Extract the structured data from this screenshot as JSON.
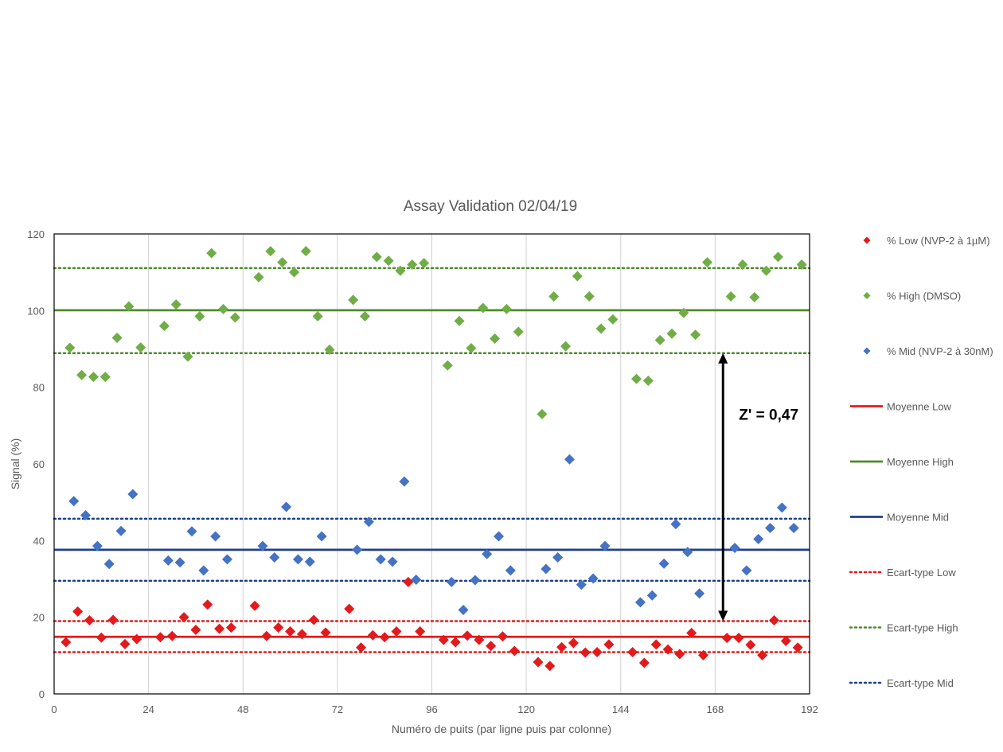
{
  "chart_data": {
    "type": "scatter",
    "title": "Assay Validation 02/04/19",
    "xlabel": "Numéro de puits (par ligne puis par colonne)",
    "ylabel": "Signal (%)",
    "xlim": [
      0,
      192
    ],
    "ylim": [
      0,
      120
    ],
    "xticks": [
      0,
      24,
      48,
      72,
      96,
      120,
      144,
      168,
      192
    ],
    "yticks": [
      0,
      20,
      40,
      60,
      80,
      100,
      120
    ],
    "grid": "vertical",
    "legend_position": "right",
    "series": [
      {
        "name": "% Low (NVP-2 à 1µM)",
        "color": "#e31a1c",
        "marker": "diamond",
        "points": [
          [
            3,
            13.5
          ],
          [
            6,
            21.5
          ],
          [
            9,
            19.2
          ],
          [
            12,
            14.7
          ],
          [
            15,
            19.3
          ],
          [
            18,
            13
          ],
          [
            21,
            14.3
          ],
          [
            27,
            14.8
          ],
          [
            30,
            15.1
          ],
          [
            33,
            20
          ],
          [
            36,
            16.7
          ],
          [
            39,
            23.3
          ],
          [
            42,
            17
          ],
          [
            45,
            17.3
          ],
          [
            51,
            23
          ],
          [
            54,
            15.1
          ],
          [
            57,
            17.3
          ],
          [
            60,
            16.3
          ],
          [
            63,
            15.6
          ],
          [
            66,
            19.3
          ],
          [
            69,
            16
          ],
          [
            75,
            22.2
          ],
          [
            78,
            12.1
          ],
          [
            81,
            15.3
          ],
          [
            84,
            14.8
          ],
          [
            87,
            16.3
          ],
          [
            90,
            29.2
          ],
          [
            93,
            16.3
          ],
          [
            99,
            14.1
          ],
          [
            102,
            13.5
          ],
          [
            105,
            15.2
          ],
          [
            108,
            14.1
          ],
          [
            111,
            12.5
          ],
          [
            114,
            15
          ],
          [
            117,
            11.2
          ],
          [
            123,
            8.3
          ],
          [
            126,
            7.3
          ],
          [
            129,
            12.2
          ],
          [
            132,
            13.3
          ],
          [
            135,
            10.8
          ],
          [
            138,
            10.9
          ],
          [
            141,
            12.9
          ],
          [
            147,
            10.9
          ],
          [
            150,
            8.1
          ],
          [
            153,
            12.9
          ],
          [
            156,
            11.6
          ],
          [
            159,
            10.4
          ],
          [
            162,
            15.9
          ],
          [
            165,
            10.1
          ],
          [
            171,
            14.6
          ],
          [
            174,
            14.6
          ],
          [
            177,
            12.8
          ],
          [
            180,
            10.1
          ],
          [
            183,
            19.2
          ],
          [
            186,
            13.8
          ],
          [
            189,
            12.1
          ]
        ]
      },
      {
        "name": "% High (DMSO)",
        "color": "#70ad47",
        "marker": "diamond",
        "points": [
          [
            4,
            90.3
          ],
          [
            7,
            83.2
          ],
          [
            10,
            82.7
          ],
          [
            13,
            82.7
          ],
          [
            16,
            92.9
          ],
          [
            19,
            101.1
          ],
          [
            22,
            90.4
          ],
          [
            28,
            96
          ],
          [
            31,
            101.6
          ],
          [
            34,
            88
          ],
          [
            37,
            98.5
          ],
          [
            40,
            115
          ],
          [
            43,
            100.4
          ],
          [
            46,
            98.2
          ],
          [
            52,
            108.7
          ],
          [
            55,
            115.5
          ],
          [
            58,
            112.6
          ],
          [
            61,
            110
          ],
          [
            64,
            115.5
          ],
          [
            67,
            98.5
          ],
          [
            70,
            89.8
          ],
          [
            76,
            102.8
          ],
          [
            79,
            98.5
          ],
          [
            82,
            114
          ],
          [
            85,
            113
          ],
          [
            88,
            110.4
          ],
          [
            91,
            112
          ],
          [
            94,
            112.4
          ],
          [
            100,
            85.7
          ],
          [
            103,
            97.3
          ],
          [
            106,
            90.2
          ],
          [
            109,
            100.7
          ],
          [
            112,
            92.7
          ],
          [
            115,
            100.4
          ],
          [
            118,
            94.5
          ],
          [
            124,
            73
          ],
          [
            127,
            103.7
          ],
          [
            130,
            90.7
          ],
          [
            133,
            109
          ],
          [
            136,
            103.7
          ],
          [
            139,
            95.3
          ],
          [
            142,
            97.7
          ],
          [
            148,
            82.2
          ],
          [
            151,
            81.7
          ],
          [
            154,
            92.3
          ],
          [
            157,
            94
          ],
          [
            160,
            99.4
          ],
          [
            163,
            93.7
          ],
          [
            166,
            112.6
          ],
          [
            172,
            103.7
          ],
          [
            175,
            112
          ],
          [
            178,
            103.5
          ],
          [
            181,
            110.4
          ],
          [
            184,
            114
          ],
          [
            190,
            112
          ]
        ]
      },
      {
        "name": "% Mid (NVP-2 à 30nM)",
        "color": "#4472c4",
        "marker": "diamond",
        "points": [
          [
            5,
            50.3
          ],
          [
            8,
            46.6
          ],
          [
            11,
            38.6
          ],
          [
            14,
            33.9
          ],
          [
            17,
            42.5
          ],
          [
            20,
            52.1
          ],
          [
            29,
            34.8
          ],
          [
            32,
            34.3
          ],
          [
            35,
            42.4
          ],
          [
            38,
            32.2
          ],
          [
            41,
            41.1
          ],
          [
            44,
            35.1
          ],
          [
            53,
            38.6
          ],
          [
            56,
            35.6
          ],
          [
            59,
            48.8
          ],
          [
            62,
            35.1
          ],
          [
            65,
            34.5
          ],
          [
            68,
            41.1
          ],
          [
            77,
            37.6
          ],
          [
            80,
            44.9
          ],
          [
            83,
            35.1
          ],
          [
            86,
            34.5
          ],
          [
            89,
            55.4
          ],
          [
            92,
            29.8
          ],
          [
            101,
            29.2
          ],
          [
            104,
            21.9
          ],
          [
            107,
            29.7
          ],
          [
            110,
            36.5
          ],
          [
            113,
            41.1
          ],
          [
            116,
            32.2
          ],
          [
            125,
            32.6
          ],
          [
            128,
            35.6
          ],
          [
            131,
            61.2
          ],
          [
            134,
            28.5
          ],
          [
            137,
            30.1
          ],
          [
            140,
            38.6
          ],
          [
            149,
            23.9
          ],
          [
            152,
            25.7
          ],
          [
            155,
            34
          ],
          [
            158,
            44.3
          ],
          [
            161,
            37
          ],
          [
            164,
            26.2
          ],
          [
            173,
            38.1
          ],
          [
            176,
            32.2
          ],
          [
            179,
            40.4
          ],
          [
            182,
            43.3
          ],
          [
            185,
            48.6
          ],
          [
            188,
            43.3
          ]
        ]
      }
    ],
    "lines": [
      {
        "name": "Moyenne Low",
        "y": 14.9,
        "color": "#e31a1c",
        "style": "solid"
      },
      {
        "name": "Moyenne High",
        "y": 100.1,
        "color": "#4e8a2e",
        "style": "solid"
      },
      {
        "name": "Moyenne Mid",
        "y": 37.6,
        "color": "#1f3f8c",
        "style": "solid"
      },
      {
        "name": "Ecart-type Low",
        "y1": 19,
        "y2": 10.9,
        "color": "#e31a1c",
        "style": "dotted"
      },
      {
        "name": "Ecart-type High",
        "y1": 111.1,
        "y2": 88.9,
        "color": "#4e8a2e",
        "style": "dotted"
      },
      {
        "name": "Ecart-type Mid",
        "y1": 45.7,
        "y2": 29.5,
        "color": "#1f3f8c",
        "style": "dotted"
      }
    ],
    "annotation": {
      "text": "Z' = 0,47",
      "x": 170,
      "y_from": 88.9,
      "y_to": 19
    }
  }
}
